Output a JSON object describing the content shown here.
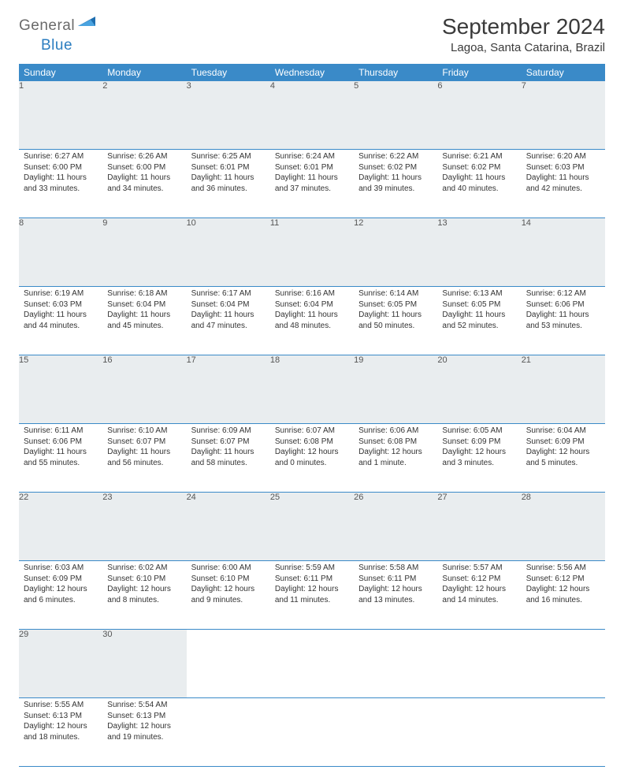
{
  "brand": {
    "part1": "General",
    "part2": "Blue"
  },
  "title": "September 2024",
  "location": "Lagoa, Santa Catarina, Brazil",
  "colors": {
    "header_bg": "#3a8ac8",
    "header_text": "#ffffff",
    "daynum_bg": "#e9edef",
    "border": "#3a8ac8",
    "text": "#333333",
    "title_text": "#3a3a3a",
    "logo_gray": "#6a6a6a",
    "logo_blue": "#2b7dc0"
  },
  "daysOfWeek": [
    "Sunday",
    "Monday",
    "Tuesday",
    "Wednesday",
    "Thursday",
    "Friday",
    "Saturday"
  ],
  "weeks": [
    [
      {
        "n": "1",
        "sr": "6:27 AM",
        "ss": "6:00 PM",
        "dl": "11 hours and 33 minutes."
      },
      {
        "n": "2",
        "sr": "6:26 AM",
        "ss": "6:00 PM",
        "dl": "11 hours and 34 minutes."
      },
      {
        "n": "3",
        "sr": "6:25 AM",
        "ss": "6:01 PM",
        "dl": "11 hours and 36 minutes."
      },
      {
        "n": "4",
        "sr": "6:24 AM",
        "ss": "6:01 PM",
        "dl": "11 hours and 37 minutes."
      },
      {
        "n": "5",
        "sr": "6:22 AM",
        "ss": "6:02 PM",
        "dl": "11 hours and 39 minutes."
      },
      {
        "n": "6",
        "sr": "6:21 AM",
        "ss": "6:02 PM",
        "dl": "11 hours and 40 minutes."
      },
      {
        "n": "7",
        "sr": "6:20 AM",
        "ss": "6:03 PM",
        "dl": "11 hours and 42 minutes."
      }
    ],
    [
      {
        "n": "8",
        "sr": "6:19 AM",
        "ss": "6:03 PM",
        "dl": "11 hours and 44 minutes."
      },
      {
        "n": "9",
        "sr": "6:18 AM",
        "ss": "6:04 PM",
        "dl": "11 hours and 45 minutes."
      },
      {
        "n": "10",
        "sr": "6:17 AM",
        "ss": "6:04 PM",
        "dl": "11 hours and 47 minutes."
      },
      {
        "n": "11",
        "sr": "6:16 AM",
        "ss": "6:04 PM",
        "dl": "11 hours and 48 minutes."
      },
      {
        "n": "12",
        "sr": "6:14 AM",
        "ss": "6:05 PM",
        "dl": "11 hours and 50 minutes."
      },
      {
        "n": "13",
        "sr": "6:13 AM",
        "ss": "6:05 PM",
        "dl": "11 hours and 52 minutes."
      },
      {
        "n": "14",
        "sr": "6:12 AM",
        "ss": "6:06 PM",
        "dl": "11 hours and 53 minutes."
      }
    ],
    [
      {
        "n": "15",
        "sr": "6:11 AM",
        "ss": "6:06 PM",
        "dl": "11 hours and 55 minutes."
      },
      {
        "n": "16",
        "sr": "6:10 AM",
        "ss": "6:07 PM",
        "dl": "11 hours and 56 minutes."
      },
      {
        "n": "17",
        "sr": "6:09 AM",
        "ss": "6:07 PM",
        "dl": "11 hours and 58 minutes."
      },
      {
        "n": "18",
        "sr": "6:07 AM",
        "ss": "6:08 PM",
        "dl": "12 hours and 0 minutes."
      },
      {
        "n": "19",
        "sr": "6:06 AM",
        "ss": "6:08 PM",
        "dl": "12 hours and 1 minute."
      },
      {
        "n": "20",
        "sr": "6:05 AM",
        "ss": "6:09 PM",
        "dl": "12 hours and 3 minutes."
      },
      {
        "n": "21",
        "sr": "6:04 AM",
        "ss": "6:09 PM",
        "dl": "12 hours and 5 minutes."
      }
    ],
    [
      {
        "n": "22",
        "sr": "6:03 AM",
        "ss": "6:09 PM",
        "dl": "12 hours and 6 minutes."
      },
      {
        "n": "23",
        "sr": "6:02 AM",
        "ss": "6:10 PM",
        "dl": "12 hours and 8 minutes."
      },
      {
        "n": "24",
        "sr": "6:00 AM",
        "ss": "6:10 PM",
        "dl": "12 hours and 9 minutes."
      },
      {
        "n": "25",
        "sr": "5:59 AM",
        "ss": "6:11 PM",
        "dl": "12 hours and 11 minutes."
      },
      {
        "n": "26",
        "sr": "5:58 AM",
        "ss": "6:11 PM",
        "dl": "12 hours and 13 minutes."
      },
      {
        "n": "27",
        "sr": "5:57 AM",
        "ss": "6:12 PM",
        "dl": "12 hours and 14 minutes."
      },
      {
        "n": "28",
        "sr": "5:56 AM",
        "ss": "6:12 PM",
        "dl": "12 hours and 16 minutes."
      }
    ],
    [
      {
        "n": "29",
        "sr": "5:55 AM",
        "ss": "6:13 PM",
        "dl": "12 hours and 18 minutes."
      },
      {
        "n": "30",
        "sr": "5:54 AM",
        "ss": "6:13 PM",
        "dl": "12 hours and 19 minutes."
      },
      null,
      null,
      null,
      null,
      null
    ]
  ],
  "labels": {
    "sunrise": "Sunrise: ",
    "sunset": "Sunset: ",
    "daylight": "Daylight: "
  }
}
